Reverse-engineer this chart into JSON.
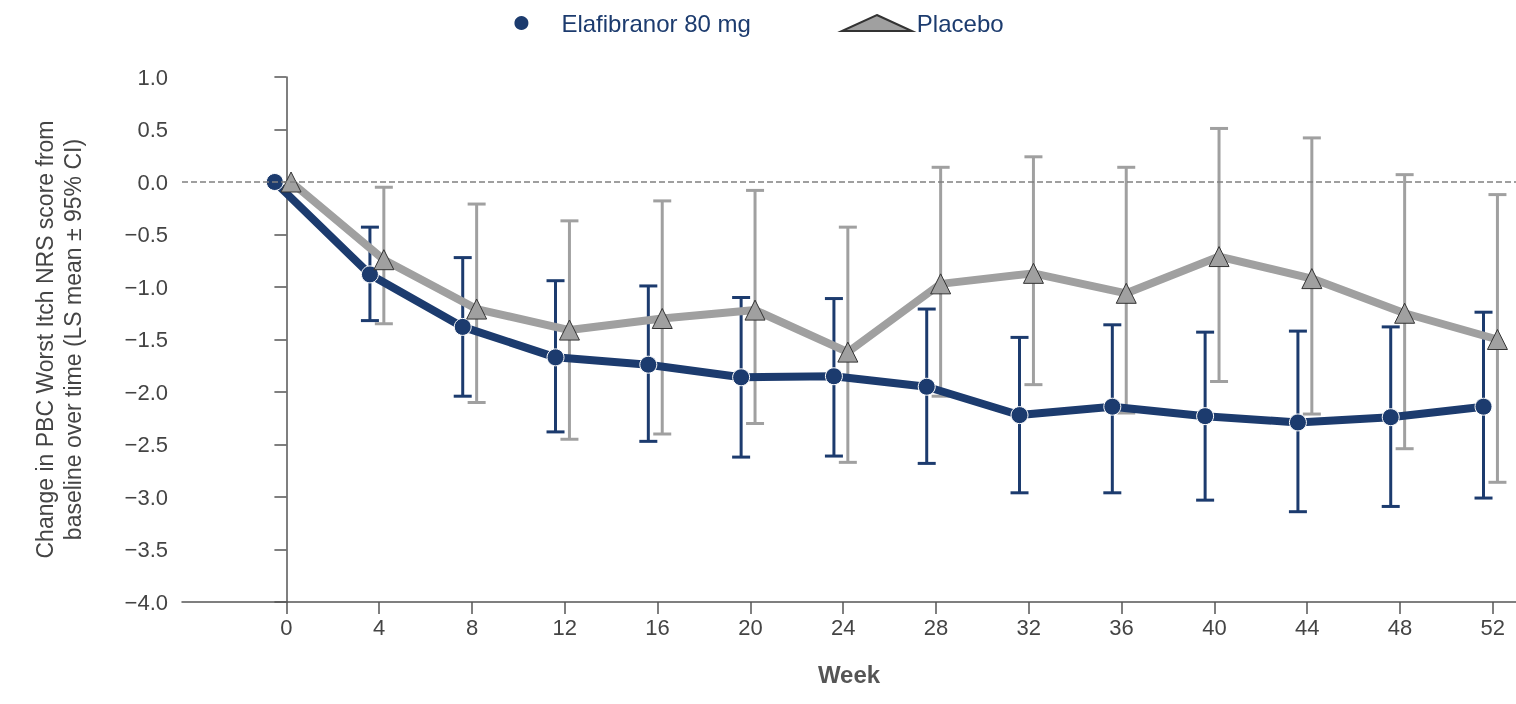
{
  "chart_data": {
    "type": "line",
    "xlabel": "Week",
    "ylabel": "Change in PBC Worst Itch NRS score from\nbaseline over time (LS mean ± 95% CI)",
    "xlim": [
      -4.5,
      53
    ],
    "xticks": [
      0,
      4,
      8,
      12,
      16,
      20,
      24,
      28,
      32,
      36,
      40,
      44,
      48,
      52
    ],
    "ylim": [
      -4,
      1
    ],
    "yticks": [
      {
        "value": -4,
        "label": "−4.0"
      },
      {
        "value": -3.5,
        "label": "−3.5"
      },
      {
        "value": -3,
        "label": "−3.0"
      },
      {
        "value": -2.5,
        "label": "−2.5"
      },
      {
        "value": -2,
        "label": "−2.0"
      },
      {
        "value": -1.5,
        "label": "−1.5"
      },
      {
        "value": -1,
        "label": "−1.0"
      },
      {
        "value": -0.5,
        "label": "−0.5"
      },
      {
        "value": 0,
        "label": "0.0"
      },
      {
        "value": 0.5,
        "label": "0.5"
      },
      {
        "value": 1,
        "label": "1.0"
      }
    ],
    "grid": false,
    "legend": "top",
    "line_style": "solid",
    "ref_lines": [
      {
        "axis": "y",
        "value": 0,
        "color": "#808080",
        "line_style": "dashed"
      }
    ],
    "series": [
      {
        "name": "Elafibranor 80 mg",
        "color": "#1c3b6e",
        "marker": "circle",
        "x": [
          -0.5,
          3.6,
          7.6,
          11.6,
          15.6,
          19.6,
          23.6,
          27.6,
          31.6,
          35.6,
          39.6,
          43.6,
          47.6,
          51.6
        ],
        "values": [
          0.0,
          -0.88,
          -1.38,
          -1.67,
          -1.74,
          -1.86,
          -1.85,
          -1.95,
          -2.22,
          -2.14,
          -2.23,
          -2.29,
          -2.24,
          -2.14
        ],
        "errors": [
          null,
          [
            -1.32,
            -0.43
          ],
          [
            -2.04,
            -0.72
          ],
          [
            -2.38,
            -0.94
          ],
          [
            -2.47,
            -0.99
          ],
          [
            -2.62,
            -1.1
          ],
          [
            -2.61,
            -1.11
          ],
          [
            -2.68,
            -1.21
          ],
          [
            -2.96,
            -1.48
          ],
          [
            -2.96,
            -1.36
          ],
          [
            -3.03,
            -1.43
          ],
          [
            -3.14,
            -1.42
          ],
          [
            -3.09,
            -1.38
          ],
          [
            -3.01,
            -1.24
          ]
        ]
      },
      {
        "name": "Placebo",
        "color": "#a0a0a0",
        "marker": "triangle",
        "x": [
          0.2,
          4.2,
          8.2,
          12.2,
          16.2,
          20.2,
          24.2,
          28.2,
          32.2,
          36.2,
          40.2,
          44.2,
          48.2,
          52.2
        ],
        "values": [
          0.0,
          -0.74,
          -1.21,
          -1.41,
          -1.3,
          -1.22,
          -1.62,
          -0.97,
          -0.87,
          -1.06,
          -0.71,
          -0.92,
          -1.25,
          -1.5
        ],
        "errors": [
          null,
          [
            -1.35,
            -0.05
          ],
          [
            -2.1,
            -0.21
          ],
          [
            -2.45,
            -0.37
          ],
          [
            -2.4,
            -0.18
          ],
          [
            -2.3,
            -0.08
          ],
          [
            -2.67,
            -0.43
          ],
          [
            -2.04,
            0.14
          ],
          [
            -1.93,
            0.24
          ],
          [
            -2.2,
            0.14
          ],
          [
            -1.9,
            0.51
          ],
          [
            -2.21,
            0.42
          ],
          [
            -2.54,
            0.07
          ],
          [
            -2.86,
            -0.12
          ]
        ]
      }
    ]
  }
}
